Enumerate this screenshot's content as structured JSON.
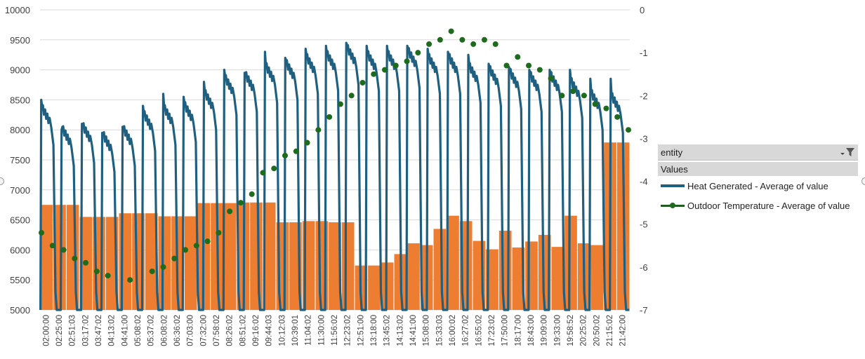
{
  "colors": {
    "bar": "#ED7D31",
    "heat_line": "#1F5F7F",
    "temp_dots": "#1E6B1E",
    "grid": "#D9D9D9",
    "panel": "#D8D8D8"
  },
  "legend": {
    "field_label": "entity",
    "values_label": "Values",
    "filter_icon": "filter-dropdown-icon",
    "items": [
      {
        "label": "Heat Generated - Average of value",
        "marker": "line"
      },
      {
        "label": "Outdoor Temperature - Average of value",
        "marker": "line-with-dot"
      }
    ]
  },
  "chart_data": {
    "type": "combo (bar + line + scatter)",
    "title": "",
    "legend_position": "right",
    "grid": true,
    "y_left": {
      "min": 5000,
      "max": 10000,
      "ticks": [
        "5000",
        "5500",
        "6000",
        "6500",
        "7000",
        "7500",
        "8000",
        "8500",
        "9000",
        "9500",
        "10000"
      ]
    },
    "y_right": {
      "min": -7,
      "max": 0,
      "ticks": [
        "-7",
        "-6",
        "-5",
        "-4",
        "-3",
        "-2",
        "-1",
        "0"
      ]
    },
    "x_tick_labels": [
      "02:00:00",
      "02:25:00",
      "02:51:03",
      "03:17:02",
      "03:47:02",
      "04:13:02",
      "04:41:00",
      "05:08:02",
      "05:37:02",
      "06:08:02",
      "06:36:02",
      "07:03:00",
      "07:32:00",
      "07:58:02",
      "08:26:02",
      "08:51:02",
      "09:16:02",
      "09:44:03",
      "10:12:03",
      "10:39:01",
      "11:04:02",
      "11:30:00",
      "11:56:02",
      "12:23:02",
      "12:51:00",
      "13:18:00",
      "13:45:02",
      "14:13:02",
      "14:41:00",
      "15:08:00",
      "15:33:03",
      "16:00:02",
      "16:27:02",
      "16:55:02",
      "17:23:02",
      "17:50:00",
      "18:17:00",
      "18:43:00",
      "19:09:00",
      "19:33:00",
      "19:58:52",
      "20:25:02",
      "20:50:02",
      "21:15:02",
      "21:42:00"
    ],
    "bars": {
      "axis": "left",
      "values": [
        6750,
        6750,
        6750,
        6550,
        6550,
        6550,
        6610,
        6610,
        6610,
        6560,
        6560,
        6560,
        6780,
        6780,
        6780,
        6790,
        6790,
        6790,
        6460,
        6460,
        6480,
        6480,
        6460,
        6460,
        5740,
        5740,
        5790,
        5930,
        6110,
        6080,
        6350,
        6570,
        6480,
        6150,
        6010,
        6320,
        6040,
        6140,
        6250,
        6050,
        6570,
        6110,
        6080,
        7790,
        7790
      ]
    },
    "series": [
      {
        "name": "Heat Generated - Average of value",
        "axis": "left",
        "style": "line",
        "cycles": [
          {
            "plateau": 8350,
            "peak": 8500,
            "low": 5000
          },
          {
            "plateau": 8000,
            "peak": 8000,
            "low": 5000
          },
          {
            "plateau": 8050,
            "peak": 8100,
            "low": 5000
          },
          {
            "plateau": 7900,
            "peak": 7950,
            "low": 5000
          },
          {
            "plateau": 8000,
            "peak": 8050,
            "low": 5000
          },
          {
            "plateau": 8250,
            "peak": 8400,
            "low": 5000
          },
          {
            "plateau": 8350,
            "peak": 8600,
            "low": 5000
          },
          {
            "plateau": 8400,
            "peak": 8550,
            "low": 5000
          },
          {
            "plateau": 8600,
            "peak": 8800,
            "low": 5000
          },
          {
            "plateau": 8850,
            "peak": 9000,
            "low": 5000
          },
          {
            "plateau": 8900,
            "peak": 8950,
            "low": 5000
          },
          {
            "plateau": 9050,
            "peak": 9300,
            "low": 5000
          },
          {
            "plateau": 9100,
            "peak": 9200,
            "low": 5000
          },
          {
            "plateau": 9200,
            "peak": 9350,
            "low": 5000
          },
          {
            "plateau": 9250,
            "peak": 9400,
            "low": 5000
          },
          {
            "plateau": 9350,
            "peak": 9450,
            "low": 5000
          },
          {
            "plateau": 9250,
            "peak": 9400,
            "low": 5000
          },
          {
            "plateau": 9250,
            "peak": 9400,
            "low": 5000
          },
          {
            "plateau": 9300,
            "peak": 9400,
            "low": 5000
          },
          {
            "plateau": 9200,
            "peak": 9350,
            "low": 5000
          },
          {
            "plateau": 9200,
            "peak": 9300,
            "low": 5000
          },
          {
            "plateau": 9050,
            "peak": 9250,
            "low": 5000
          },
          {
            "plateau": 9000,
            "peak": 9100,
            "low": 5000
          },
          {
            "plateau": 8950,
            "peak": 9050,
            "low": 5000
          },
          {
            "plateau": 8900,
            "peak": 9000,
            "low": 5000
          },
          {
            "plateau": 8900,
            "peak": 9000,
            "low": 5000
          },
          {
            "plateau": 8800,
            "peak": 9000,
            "low": 5000
          },
          {
            "plateau": 8600,
            "peak": 8850,
            "low": 5000
          },
          {
            "plateau": 8550,
            "peak": 8850,
            "low": 5000
          }
        ]
      },
      {
        "name": "Outdoor Temperature - Average of value",
        "axis": "right",
        "style": "markers",
        "points": [
          [
            0,
            -5.2
          ],
          [
            1,
            -5.5
          ],
          [
            2,
            -5.6
          ],
          [
            3,
            -5.8
          ],
          [
            4,
            -5.9
          ],
          [
            5,
            -6.1
          ],
          [
            6,
            -6.2
          ],
          [
            8,
            -6.3
          ],
          [
            10,
            -6.1
          ],
          [
            11,
            -6.0
          ],
          [
            12,
            -5.8
          ],
          [
            13,
            -5.6
          ],
          [
            14,
            -5.5
          ],
          [
            15,
            -5.4
          ],
          [
            16,
            -5.2
          ],
          [
            17,
            -4.7
          ],
          [
            18,
            -4.5
          ],
          [
            19,
            -4.3
          ],
          [
            20,
            -3.8
          ],
          [
            21,
            -3.7
          ],
          [
            22,
            -3.4
          ],
          [
            23,
            -3.3
          ],
          [
            24,
            -3.1
          ],
          [
            25,
            -2.8
          ],
          [
            26,
            -2.5
          ],
          [
            27,
            -2.2
          ],
          [
            28,
            -2.0
          ],
          [
            29,
            -1.7
          ],
          [
            30,
            -1.5
          ],
          [
            31,
            -1.4
          ],
          [
            32,
            -1.3
          ],
          [
            33,
            -1.2
          ],
          [
            34,
            -1.0
          ],
          [
            35,
            -0.8
          ],
          [
            36,
            -0.7
          ],
          [
            37,
            -0.5
          ],
          [
            38,
            -0.7
          ],
          [
            39,
            -0.8
          ],
          [
            40,
            -0.7
          ],
          [
            41,
            -0.8
          ],
          [
            42,
            -1.3
          ],
          [
            43,
            -1.1
          ],
          [
            44,
            -1.3
          ],
          [
            45,
            -1.4
          ],
          [
            46,
            -1.6
          ],
          [
            47,
            -2.0
          ],
          [
            48,
            -1.9
          ],
          [
            49,
            -2.0
          ],
          [
            50,
            -2.2
          ],
          [
            51,
            -2.3
          ],
          [
            52,
            -2.5
          ],
          [
            53,
            -2.8
          ]
        ]
      }
    ]
  }
}
